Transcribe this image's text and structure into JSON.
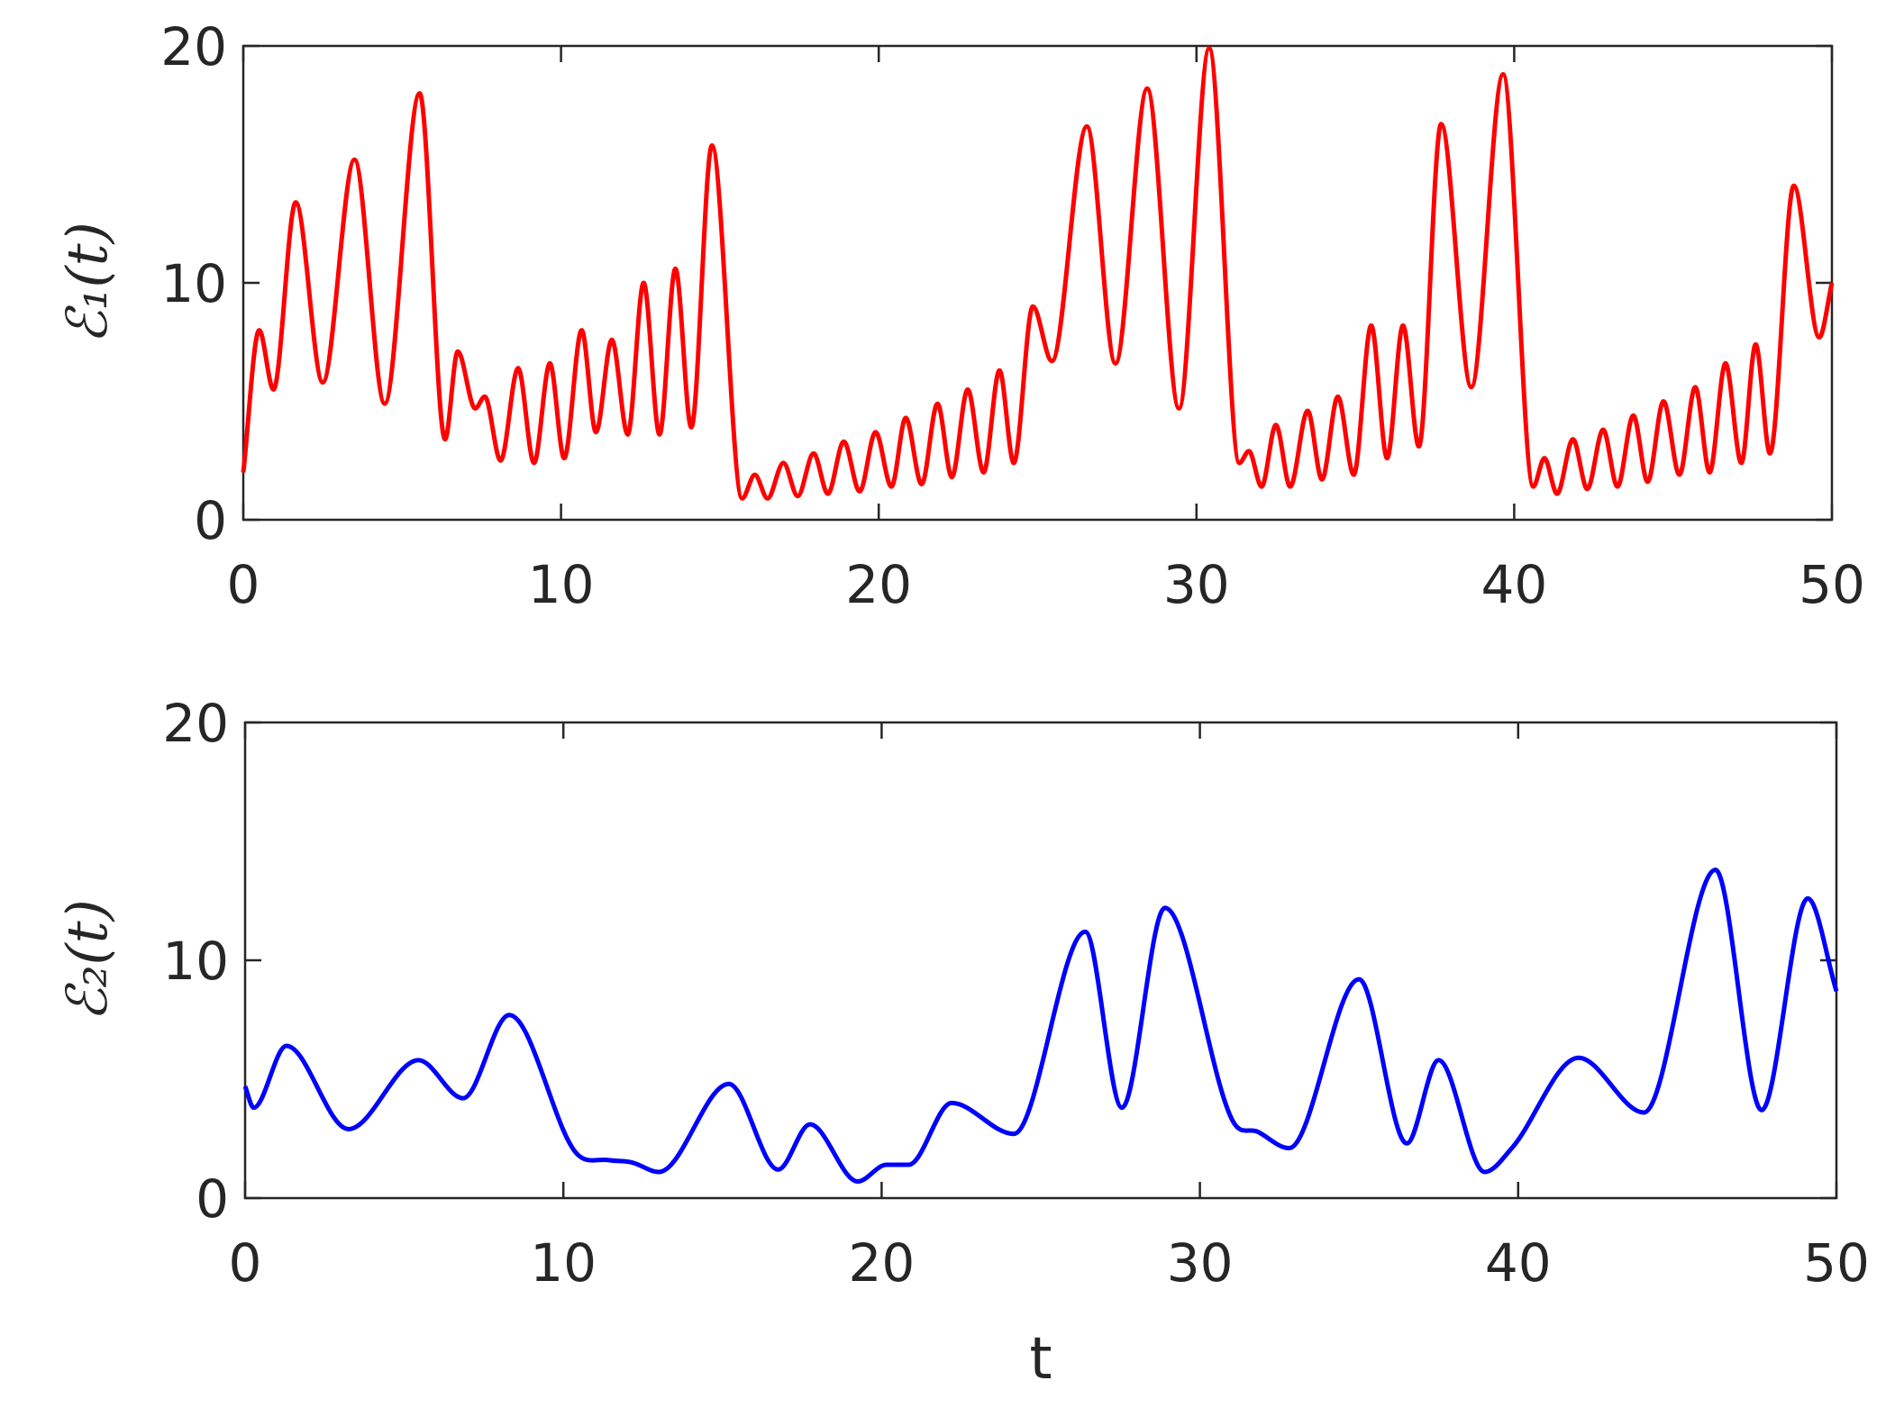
{
  "chart_data": [
    {
      "type": "line",
      "ylabel": "ℰ₁(t)",
      "color": "#ff0000",
      "x": [
        0,
        0.5,
        0.95,
        1.65,
        2.5,
        3.5,
        4.45,
        5.55,
        6.35,
        6.75,
        7.3,
        7.6,
        8.1,
        8.65,
        9.15,
        9.65,
        10.1,
        10.65,
        11.1,
        11.6,
        12.1,
        12.6,
        13.1,
        13.6,
        14.1,
        14.75,
        15.7,
        16.1,
        16.5,
        17.0,
        17.45,
        17.95,
        18.4,
        18.9,
        19.4,
        19.9,
        20.4,
        20.85,
        21.35,
        21.85,
        22.3,
        22.8,
        23.3,
        23.8,
        24.25,
        24.85,
        25.45,
        26.55,
        27.45,
        28.45,
        29.45,
        30.4,
        31.35,
        31.65,
        32.05,
        32.5,
        32.95,
        33.5,
        33.95,
        34.45,
        34.95,
        35.5,
        36.0,
        36.5,
        37.0,
        37.7,
        38.65,
        39.65,
        40.6,
        40.95,
        41.35,
        41.85,
        42.3,
        42.8,
        43.25,
        43.75,
        44.2,
        44.7,
        45.2,
        45.7,
        46.15,
        46.65,
        47.15,
        47.6,
        48.05,
        48.8,
        49.6,
        50
      ],
      "values": [
        2.0,
        8.0,
        5.5,
        13.4,
        5.8,
        15.2,
        4.9,
        18.0,
        3.4,
        7.1,
        4.7,
        5.2,
        2.5,
        6.4,
        2.4,
        6.6,
        2.6,
        8.0,
        3.7,
        7.6,
        3.6,
        10.0,
        3.6,
        10.6,
        3.9,
        15.8,
        0.9,
        1.9,
        0.9,
        2.4,
        1.0,
        2.8,
        1.1,
        3.3,
        1.2,
        3.7,
        1.4,
        4.3,
        1.5,
        4.9,
        1.8,
        5.5,
        2.0,
        6.3,
        2.4,
        9.0,
        6.7,
        16.6,
        6.6,
        18.2,
        4.7,
        19.9,
        2.4,
        2.9,
        1.4,
        4.0,
        1.4,
        4.6,
        1.7,
        5.2,
        1.9,
        8.2,
        2.6,
        8.2,
        3.1,
        16.7,
        5.6,
        18.8,
        1.4,
        2.6,
        1.1,
        3.4,
        1.3,
        3.8,
        1.4,
        4.4,
        1.6,
        5.0,
        1.9,
        5.6,
        2.0,
        6.6,
        2.4,
        7.4,
        2.8,
        14.1,
        7.7,
        10.0
      ],
      "xlim": [
        0,
        50
      ],
      "ylim": [
        0,
        20
      ],
      "xticks": [
        0,
        10,
        20,
        30,
        40,
        50
      ],
      "yticks": [
        0,
        10,
        20
      ]
    },
    {
      "type": "line",
      "ylabel": "ℰ₂(t)",
      "xlabel": "t",
      "color": "#0000ff",
      "x": [
        0,
        0.27,
        1.3,
        3.25,
        5.45,
        6.85,
        8.3,
        10.4,
        11.4,
        12.15,
        13.0,
        15.2,
        16.75,
        17.75,
        19.25,
        20.15,
        20.85,
        22.2,
        24.15,
        26.4,
        27.55,
        28.9,
        31.05,
        31.8,
        32.8,
        35.0,
        36.5,
        37.5,
        38.95,
        39.8,
        41.9,
        43.95,
        46.2,
        47.65,
        49.1,
        50
      ],
      "values": [
        4.7,
        3.8,
        6.4,
        2.9,
        5.8,
        4.2,
        7.7,
        1.9,
        1.6,
        1.5,
        1.1,
        4.8,
        1.2,
        3.1,
        0.7,
        1.4,
        1.4,
        4.0,
        2.7,
        11.2,
        3.8,
        12.2,
        3.2,
        2.8,
        2.1,
        9.2,
        2.3,
        5.8,
        1.1,
        2.1,
        5.9,
        3.6,
        13.8,
        3.7,
        12.6,
        8.7
      ],
      "xlim": [
        0,
        50
      ],
      "ylim": [
        0,
        20
      ],
      "xticks": [
        0,
        10,
        20,
        30,
        40,
        50
      ],
      "yticks": [
        0,
        10,
        20
      ]
    }
  ]
}
